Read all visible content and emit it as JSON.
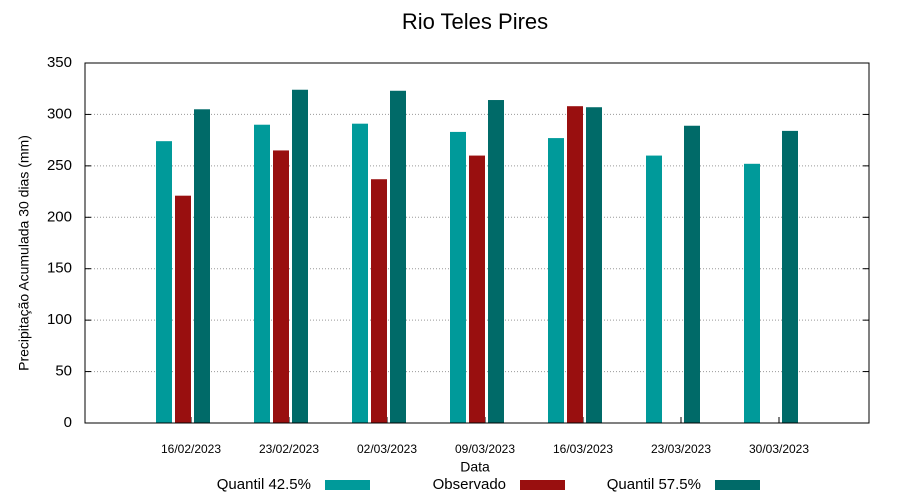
{
  "chart_data": {
    "type": "bar",
    "title": "Rio Teles Pires",
    "x_label": "Data",
    "y_label": "Precipitação Acumulada 30 dias (mm)",
    "categories": [
      "16/02/2023",
      "23/02/2023",
      "02/03/2023",
      "09/03/2023",
      "16/03/2023",
      "23/03/2023",
      "30/03/2023"
    ],
    "series": [
      {
        "name": "Quantil 42.5%",
        "color": "#009a9a",
        "values": [
          274,
          290,
          291,
          283,
          277,
          260,
          252
        ]
      },
      {
        "name": "Observado",
        "color": "#990f0f",
        "values": [
          221,
          265,
          237,
          260,
          308,
          null,
          null
        ]
      },
      {
        "name": "Quantil 57.5%",
        "color": "#006a68",
        "values": [
          305,
          324,
          323,
          314,
          307,
          289,
          284
        ]
      }
    ],
    "ylim": [
      0,
      350
    ],
    "yticks": [
      0,
      50,
      100,
      150,
      200,
      250,
      300,
      350
    ],
    "grid": true,
    "legend": "bottom"
  }
}
